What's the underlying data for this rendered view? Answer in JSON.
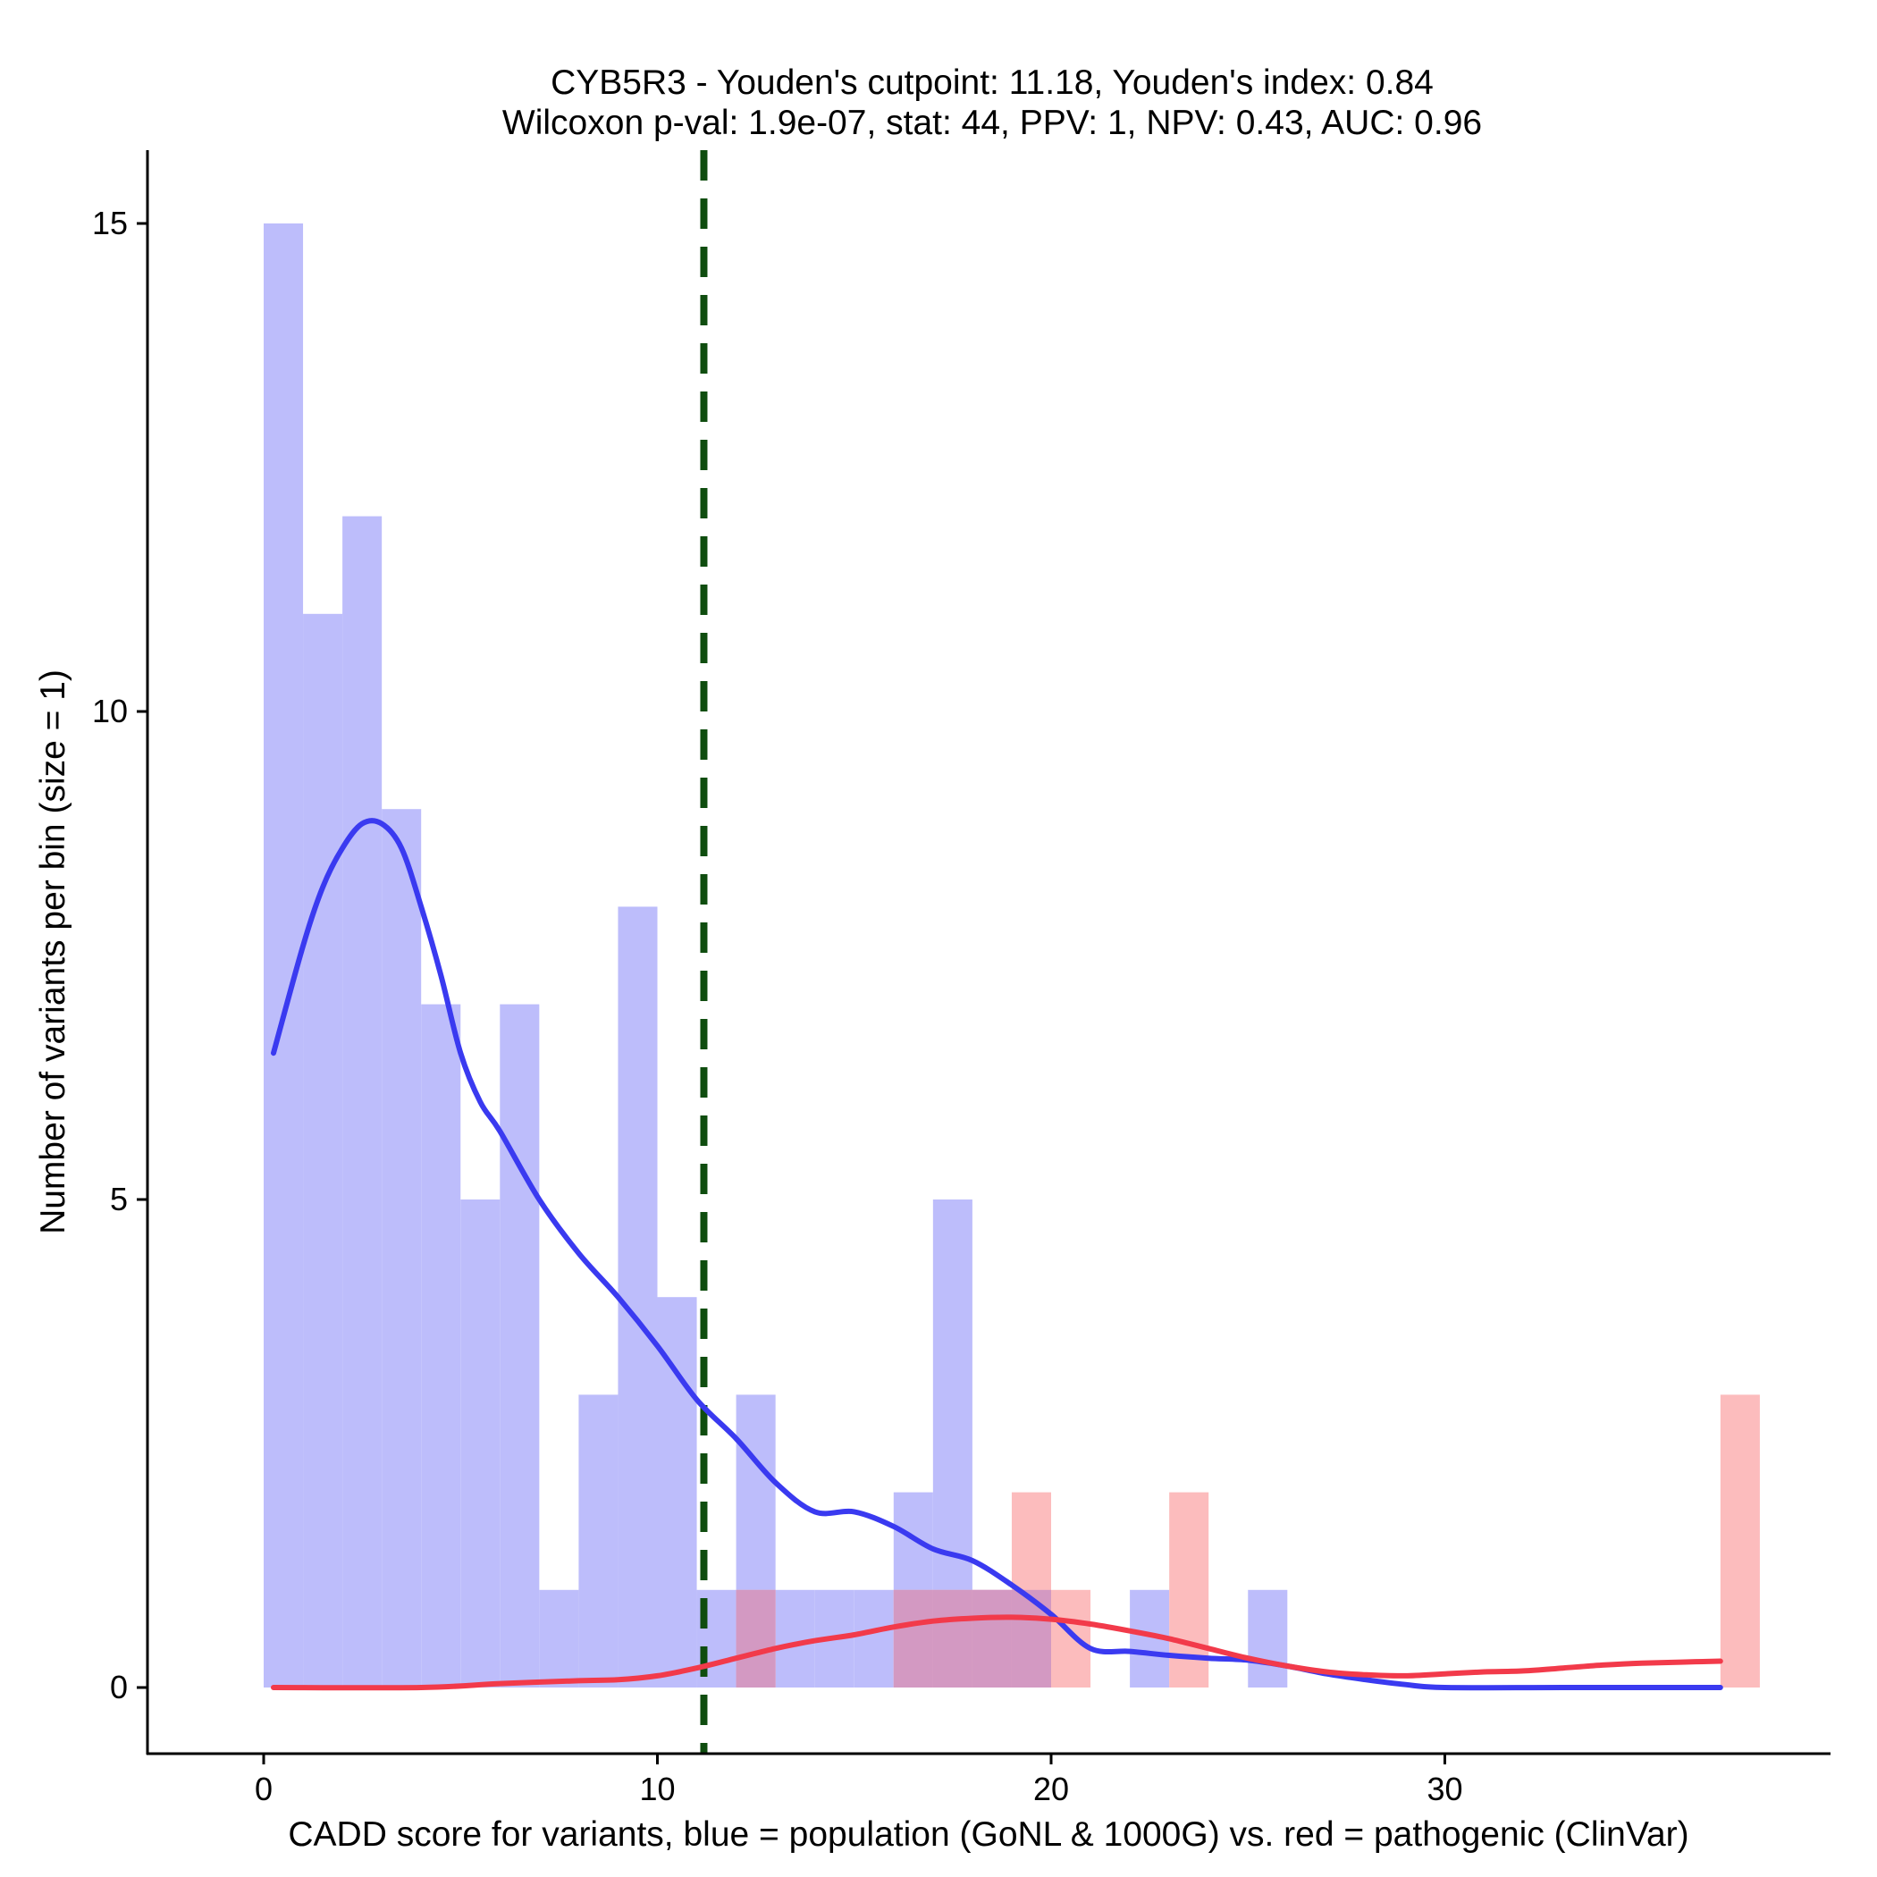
{
  "chart_data": {
    "type": "bar",
    "title_lines": [
      "CYB5R3 - Youden's cutpoint: 11.18, Youden's index: 0.84",
      "Wilcoxon p-val: 1.9e-07, stat: 44, PPV: 1, NPV: 0.43, AUC: 0.96"
    ],
    "xlabel": "CADD score for variants, blue = population (GoNL & 1000G) vs. red = pathogenic (ClinVar)",
    "ylabel": "Number of variants per bin (size = 1)",
    "xlim": [
      -3,
      40
    ],
    "ylim": [
      -0.75,
      15.75
    ],
    "x_ticks": [
      0,
      10,
      20,
      30
    ],
    "x_tick_labels": [
      "0",
      "10",
      "20",
      "30"
    ],
    "y_ticks": [
      0,
      5,
      10,
      15
    ],
    "y_tick_labels": [
      "0",
      "5",
      "10",
      "15"
    ],
    "bin_size": 1,
    "cutpoint": 11.18,
    "colors": {
      "population_bar": "#bdbdfb",
      "pathogenic_bar": "#fcbcbd",
      "overlap_bar": "#d399c2",
      "population_line": "#3a3af0",
      "pathogenic_line": "#f23a4a",
      "cutpoint_line": "#0f4d0f"
    },
    "series": [
      {
        "name": "population (GoNL & 1000G)",
        "bins": [
          {
            "x0": 0,
            "count": 15
          },
          {
            "x0": 1,
            "count": 11
          },
          {
            "x0": 2,
            "count": 12
          },
          {
            "x0": 3,
            "count": 9
          },
          {
            "x0": 4,
            "count": 7
          },
          {
            "x0": 5,
            "count": 5
          },
          {
            "x0": 6,
            "count": 7
          },
          {
            "x0": 7,
            "count": 1
          },
          {
            "x0": 8,
            "count": 3
          },
          {
            "x0": 9,
            "count": 8
          },
          {
            "x0": 10,
            "count": 4
          },
          {
            "x0": 11,
            "count": 1
          },
          {
            "x0": 12,
            "count": 3
          },
          {
            "x0": 13,
            "count": 1
          },
          {
            "x0": 14,
            "count": 1
          },
          {
            "x0": 15,
            "count": 1
          },
          {
            "x0": 16,
            "count": 2
          },
          {
            "x0": 17,
            "count": 5
          },
          {
            "x0": 18,
            "count": 1
          },
          {
            "x0": 19,
            "count": 1
          },
          {
            "x0": 22,
            "count": 1
          },
          {
            "x0": 25,
            "count": 1
          }
        ],
        "density_curve": [
          [
            0.25,
            6.5
          ],
          [
            1.0,
            7.6
          ],
          [
            1.5,
            8.2
          ],
          [
            2.0,
            8.6
          ],
          [
            2.5,
            8.85
          ],
          [
            3.0,
            8.85
          ],
          [
            3.5,
            8.6
          ],
          [
            4.0,
            8.0
          ],
          [
            4.5,
            7.3
          ],
          [
            5.0,
            6.5
          ],
          [
            5.5,
            6.0
          ],
          [
            6.0,
            5.7
          ],
          [
            7.0,
            5.0
          ],
          [
            8.0,
            4.45
          ],
          [
            9.0,
            4.0
          ],
          [
            10.0,
            3.5
          ],
          [
            11.0,
            2.95
          ],
          [
            12.0,
            2.55
          ],
          [
            13.0,
            2.1
          ],
          [
            14.0,
            1.8
          ],
          [
            15.0,
            1.8
          ],
          [
            16.0,
            1.65
          ],
          [
            17.0,
            1.42
          ],
          [
            18.0,
            1.3
          ],
          [
            19.0,
            1.05
          ],
          [
            20.0,
            0.75
          ],
          [
            21.0,
            0.4
          ],
          [
            22.0,
            0.37
          ],
          [
            23.0,
            0.33
          ],
          [
            24.0,
            0.3
          ],
          [
            25.0,
            0.28
          ],
          [
            26.0,
            0.22
          ],
          [
            27.0,
            0.14
          ],
          [
            28.0,
            0.08
          ],
          [
            29.0,
            0.03
          ],
          [
            30.0,
            0.0
          ],
          [
            33.0,
            0.0
          ],
          [
            37.0,
            0.0
          ]
        ]
      },
      {
        "name": "pathogenic (ClinVar)",
        "bins": [
          {
            "x0": 12,
            "count": 1
          },
          {
            "x0": 16,
            "count": 1
          },
          {
            "x0": 17,
            "count": 1
          },
          {
            "x0": 18,
            "count": 1
          },
          {
            "x0": 19,
            "count": 2
          },
          {
            "x0": 20,
            "count": 1
          },
          {
            "x0": 23,
            "count": 2
          },
          {
            "x0": 37,
            "count": 3
          }
        ],
        "density_curve": [
          [
            0.25,
            0.0
          ],
          [
            4.0,
            0.0
          ],
          [
            6.0,
            0.04
          ],
          [
            8.0,
            0.07
          ],
          [
            9.0,
            0.08
          ],
          [
            10.0,
            0.12
          ],
          [
            11.0,
            0.2
          ],
          [
            12.0,
            0.3
          ],
          [
            13.0,
            0.4
          ],
          [
            14.0,
            0.48
          ],
          [
            15.0,
            0.54
          ],
          [
            16.0,
            0.62
          ],
          [
            17.0,
            0.68
          ],
          [
            18.0,
            0.71
          ],
          [
            19.0,
            0.72
          ],
          [
            20.0,
            0.7
          ],
          [
            21.0,
            0.65
          ],
          [
            22.0,
            0.58
          ],
          [
            23.0,
            0.5
          ],
          [
            24.0,
            0.4
          ],
          [
            25.0,
            0.3
          ],
          [
            26.0,
            0.22
          ],
          [
            27.0,
            0.16
          ],
          [
            28.0,
            0.13
          ],
          [
            29.0,
            0.12
          ],
          [
            30.0,
            0.14
          ],
          [
            31.0,
            0.16
          ],
          [
            32.0,
            0.17
          ],
          [
            33.0,
            0.2
          ],
          [
            34.0,
            0.23
          ],
          [
            35.0,
            0.25
          ],
          [
            36.0,
            0.26
          ],
          [
            37.0,
            0.27
          ]
        ]
      }
    ]
  }
}
